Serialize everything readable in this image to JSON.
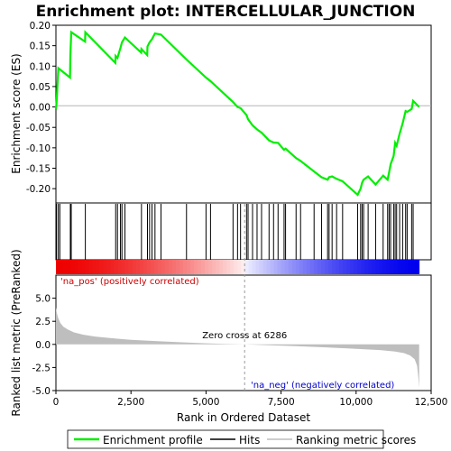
{
  "chart_data": {
    "type": "line",
    "title": "Enrichment plot: INTERCELLULAR_JUNCTION",
    "xlabel": "Rank in Ordered Dataset",
    "ylabel_top": "Enrichment score (ES)",
    "ylabel_bottom": "Ranked list metric (PreRanked)",
    "xlim": [
      0,
      12500
    ],
    "x_max_rank": 12100,
    "es_ylim": [
      -0.235,
      0.2
    ],
    "metric_ylim": [
      -5.0,
      7.5
    ],
    "x_ticks": [
      0,
      2500,
      5000,
      7500,
      10000,
      12500
    ],
    "x_tick_labels": [
      "0",
      "2,500",
      "5,000",
      "7,500",
      "10,000",
      "12,500"
    ],
    "es_ticks": [
      0.2,
      0.15,
      0.1,
      0.05,
      0.0,
      -0.05,
      -0.1,
      -0.15,
      -0.2
    ],
    "es_tick_labels": [
      "0.20",
      "0.15",
      "0.10",
      "0.05",
      "0.00",
      "-0.05",
      "-0.10",
      "-0.15",
      "-0.20"
    ],
    "metric_ticks": [
      5.0,
      2.5,
      0.0,
      -2.5,
      -5.0
    ],
    "metric_tick_labels": [
      "5.0",
      "2.5",
      "0.0",
      "-2.5",
      "-5.0"
    ],
    "zero_cross_rank": 6286,
    "zero_cross_label": "Zero cross at 6286",
    "pos_label": "'na_pos' (positively correlated)",
    "neg_label": "'na_neg' (negatively correlated)",
    "hits": [
      20,
      80,
      130,
      480,
      510,
      980,
      1990,
      2050,
      2150,
      2200,
      2300,
      2850,
      3050,
      3120,
      3200,
      3300,
      3500,
      4350,
      5000,
      5150,
      5900,
      6050,
      6150,
      6350,
      6400,
      6550,
      6700,
      6850,
      7100,
      7250,
      7400,
      7600,
      7650,
      8000,
      8150,
      8600,
      8850,
      9050,
      9100,
      9200,
      9350,
      9550,
      10050,
      10150,
      10200,
      10250,
      10400,
      10650,
      10900,
      11050,
      11100,
      11150,
      11250,
      11300,
      11350,
      11450,
      11550,
      11650,
      11700,
      11850,
      11900
    ],
    "enrichment_profile": {
      "x": [
        0,
        20,
        80,
        130,
        470,
        480,
        510,
        970,
        980,
        1980,
        1990,
        2050,
        2150,
        2200,
        2300,
        2840,
        2850,
        3040,
        3050,
        3120,
        3200,
        3300,
        3500,
        4350,
        5000,
        5150,
        5900,
        6050,
        6150,
        6350,
        6400,
        6550,
        6700,
        6850,
        7100,
        7250,
        7400,
        7600,
        7650,
        8000,
        8150,
        8600,
        8850,
        9050,
        9100,
        9200,
        9350,
        9550,
        10050,
        10150,
        10200,
        10250,
        10400,
        10650,
        10900,
        11050,
        11100,
        11150,
        11250,
        11300,
        11350,
        11450,
        11550,
        11650,
        11700,
        11850,
        11900,
        12100
      ],
      "y": [
        -0.005,
        0.01,
        0.095,
        0.092,
        0.072,
        0.125,
        0.183,
        0.16,
        0.183,
        0.108,
        0.125,
        0.12,
        0.145,
        0.158,
        0.17,
        0.133,
        0.142,
        0.127,
        0.148,
        0.158,
        0.166,
        0.18,
        0.177,
        0.116,
        0.072,
        0.063,
        0.012,
        0.0,
        -0.003,
        -0.02,
        -0.03,
        -0.045,
        -0.055,
        -0.063,
        -0.082,
        -0.087,
        -0.088,
        -0.105,
        -0.102,
        -0.125,
        -0.132,
        -0.158,
        -0.172,
        -0.178,
        -0.172,
        -0.17,
        -0.176,
        -0.182,
        -0.215,
        -0.2,
        -0.185,
        -0.178,
        -0.17,
        -0.19,
        -0.168,
        -0.178,
        -0.16,
        -0.14,
        -0.12,
        -0.088,
        -0.095,
        -0.065,
        -0.04,
        -0.01,
        -0.012,
        -0.005,
        0.015,
        0.0
      ]
    },
    "ranked_metric": {
      "x": [
        0,
        30,
        80,
        150,
        250,
        400,
        600,
        900,
        1300,
        1800,
        2500,
        3300,
        4200,
        5000,
        5600,
        6286,
        7000,
        8000,
        9000,
        10000,
        10800,
        11300,
        11600,
        11800,
        11950,
        12030,
        12070,
        12100
      ],
      "y": [
        4.0,
        3.4,
        2.8,
        2.3,
        1.9,
        1.6,
        1.3,
        1.05,
        0.85,
        0.68,
        0.5,
        0.36,
        0.22,
        0.12,
        0.06,
        0.0,
        -0.08,
        -0.2,
        -0.32,
        -0.48,
        -0.62,
        -0.78,
        -0.95,
        -1.2,
        -1.6,
        -2.3,
        -3.5,
        -4.7
      ]
    },
    "colors": {
      "profile": "#00ee00",
      "hit": "#000000",
      "metric_fill": "#bebebe",
      "zero_cross_line": "#999999",
      "pos_label": "#cc0000",
      "neg_label": "#0000cc",
      "bar_red": "#ee0000",
      "bar_blue": "#0000ee"
    }
  },
  "legend": {
    "items": [
      {
        "label": "Enrichment profile",
        "marker": "line-green"
      },
      {
        "label": "Hits",
        "marker": "line-black"
      },
      {
        "label": "Ranking metric scores",
        "marker": "line-gray"
      }
    ]
  }
}
